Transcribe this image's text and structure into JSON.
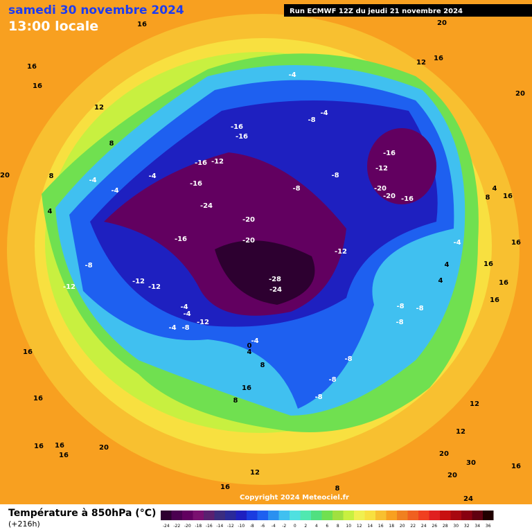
{
  "header": {
    "title": "samedi 30 novembre 2024",
    "subtitle": "13:00 locale",
    "run": "Run ECMWF 12Z du jeudi 21 novembre 2024"
  },
  "map": {
    "contour_labels": [
      16,
      20,
      16,
      12,
      16,
      16,
      12,
      20,
      -4,
      -4,
      -8,
      -16,
      -16,
      8,
      -16,
      -12,
      -16,
      -12,
      -4,
      -4,
      8,
      -4,
      -8,
      -8,
      -16,
      -24,
      -20,
      -20,
      -16,
      4,
      8,
      16,
      20,
      4,
      -20,
      -16,
      -20,
      -12,
      -4,
      16,
      -8,
      4,
      16,
      -28,
      -12,
      -12,
      -24,
      -12,
      4,
      16,
      16,
      -8,
      -8,
      -4,
      -4,
      -8,
      -4,
      -8,
      -12,
      0,
      -4,
      4,
      16,
      -8,
      8,
      -8,
      16,
      16,
      -8,
      8,
      12,
      12,
      20,
      16,
      16,
      16,
      20,
      30,
      20,
      16,
      12,
      8,
      24,
      16
    ]
  },
  "copyright": "Copyright 2024 Meteociel.fr",
  "footer": {
    "title": "Température à 850hPa (°C)",
    "lead": "(+216h)"
  },
  "legend": {
    "ticks": [
      -24,
      -22,
      -20,
      -18,
      -16,
      -14,
      -12,
      -10,
      -8,
      -6,
      -4,
      -2,
      0,
      2,
      4,
      6,
      8,
      10,
      12,
      14,
      16,
      18,
      20,
      22,
      24,
      26,
      28,
      30,
      32,
      34,
      36
    ],
    "colors": [
      "#2d0030",
      "#4b0050",
      "#620060",
      "#7a1070",
      "#5a2070",
      "#3a2c80",
      "#2a2a9a",
      "#1e20c0",
      "#1a3ce0",
      "#1e60f0",
      "#2a90f0",
      "#40c0f0",
      "#50e0e0",
      "#50e8b0",
      "#50e080",
      "#70e050",
      "#a0e040",
      "#c8f040",
      "#f0f050",
      "#f8e040",
      "#f8c030",
      "#f8a020",
      "#f08020",
      "#f06020",
      "#f04020",
      "#e02020",
      "#c81010",
      "#a80810",
      "#880010",
      "#600010",
      "#200000"
    ]
  }
}
